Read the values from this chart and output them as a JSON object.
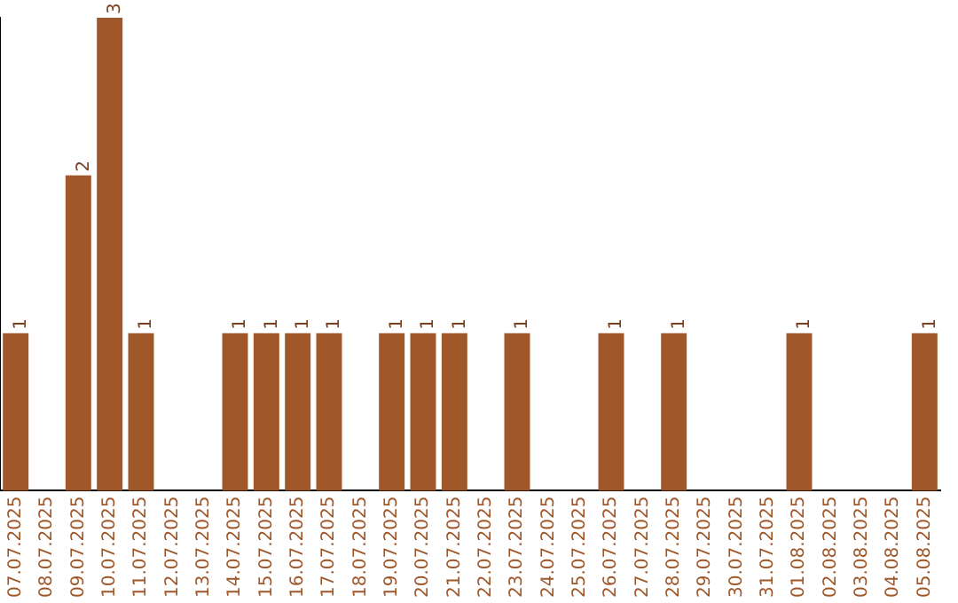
{
  "chart_data": {
    "type": "bar",
    "categories": [
      "07.07.2025",
      "08.07.2025",
      "09.07.2025",
      "10.07.2025",
      "11.07.2025",
      "12.07.2025",
      "13.07.2025",
      "14.07.2025",
      "15.07.2025",
      "16.07.2025",
      "17.07.2025",
      "18.07.2025",
      "19.07.2025",
      "20.07.2025",
      "21.07.2025",
      "22.07.2025",
      "23.07.2025",
      "24.07.2025",
      "25.07.2025",
      "26.07.2025",
      "27.07.2025",
      "28.07.2025",
      "29.07.2025",
      "30.07.2025",
      "31.07.2025",
      "01.08.2025",
      "02.08.2025",
      "03.08.2025",
      "04.08.2025",
      "05.08.2025"
    ],
    "values": [
      1,
      0,
      2,
      3,
      1,
      0,
      0,
      1,
      1,
      1,
      1,
      0,
      1,
      1,
      1,
      0,
      1,
      0,
      0,
      1,
      0,
      1,
      0,
      0,
      0,
      1,
      0,
      0,
      0,
      1
    ],
    "value_labels": [
      "1",
      null,
      "2",
      "3",
      "1",
      null,
      null,
      "1",
      "1",
      "1",
      "1",
      null,
      "1",
      "1",
      "1",
      null,
      "1",
      null,
      null,
      "1",
      null,
      "1",
      null,
      null,
      null,
      "1",
      null,
      null,
      null,
      "1"
    ],
    "color": "#a0572a",
    "ylim": [
      0,
      3
    ],
    "tick_labels": "x",
    "grid": false,
    "legend": false
  }
}
